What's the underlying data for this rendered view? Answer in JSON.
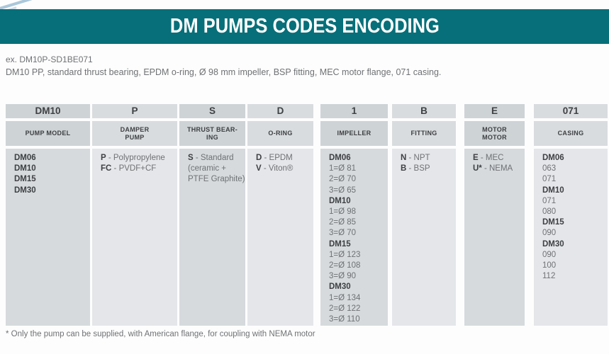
{
  "page": {
    "title": "DM PUMPS CODES ENCODING",
    "example_label": "ex. DM10P-SD1BE071",
    "example_description": "DM10 PP, standard thrust bearing, EPDM o-ring, Ø 98 mm impeller, BSP fitting, MEC motor flange, 071 casing.",
    "footnote": "* Only the pump can be supplied, with American flange, for coupling with NEMA motor"
  },
  "colors": {
    "accent_teal": "#076f79",
    "header_cell_dark": "#ced3d6",
    "header_cell_light": "#d9dcde",
    "body_cell_dark": "#d6dadd",
    "body_cell_light": "#e4e6e9",
    "text_dark": "#3e4043",
    "text_gray": "#6f7174"
  },
  "table": {
    "columns": [
      {
        "code": "DM10",
        "label": "PUMP MODEL",
        "lines": [
          {
            "b": "DM06"
          },
          {
            "b": "DM10"
          },
          {
            "b": "DM15"
          },
          {
            "b": "DM30"
          }
        ]
      },
      {
        "code": "P",
        "label": "DAMPER\nPUMP",
        "lines": [
          {
            "b": "P",
            "r": " - Polypropylene"
          },
          {
            "b": "FC",
            "r": " - PVDF+CF"
          }
        ]
      },
      {
        "code": "S",
        "label": "THRUST BEAR-\nING",
        "lines": [
          {
            "b": "S",
            "r": " - Standard"
          },
          {
            "r": "(ceramic +"
          },
          {
            "r": "PTFE Graphite)"
          }
        ]
      },
      {
        "code": "D",
        "label": "O-RING",
        "lines": [
          {
            "b": "D",
            "r": " - EPDM"
          },
          {
            "b": "V",
            "r": " - Viton®"
          }
        ]
      },
      {
        "code": "1",
        "label": "IMPELLER",
        "lines": [
          {
            "b": "DM06"
          },
          {
            "r": "1=Ø 81"
          },
          {
            "r": "2=Ø 70"
          },
          {
            "r": "3=Ø 65"
          },
          {
            "b": "DM10"
          },
          {
            "r": "1=Ø 98"
          },
          {
            "r": "2=Ø 85"
          },
          {
            "r": "3=Ø 70"
          },
          {
            "b": "DM15"
          },
          {
            "r": "1=Ø 123"
          },
          {
            "r": "2=Ø 108"
          },
          {
            "r": "3=Ø 90"
          },
          {
            "b": "DM30"
          },
          {
            "r": "1=Ø 134"
          },
          {
            "r": "2=Ø 122"
          },
          {
            "r": "3=Ø 110"
          }
        ]
      },
      {
        "code": "B",
        "label": "FITTING",
        "lines": [
          {
            "b": "N",
            "r": " - NPT"
          },
          {
            "b": "B",
            "r": " - BSP"
          }
        ]
      },
      {
        "code": "E",
        "label": "MOTOR\nMOTOR",
        "lines": [
          {
            "b": "E",
            "r": " - MEC"
          },
          {
            "b": "U*",
            "r": " - NEMA"
          }
        ]
      },
      {
        "code": "071",
        "label": "CASING",
        "lines": [
          {
            "b": "DM06"
          },
          {
            "r": "063"
          },
          {
            "r": "071"
          },
          {
            "b": "DM10"
          },
          {
            "r": "071"
          },
          {
            "r": "080"
          },
          {
            "b": "DM15"
          },
          {
            "r": "090"
          },
          {
            "b": "DM30"
          },
          {
            "r": "090"
          },
          {
            "r": "100"
          },
          {
            "r": "112"
          }
        ]
      }
    ]
  }
}
